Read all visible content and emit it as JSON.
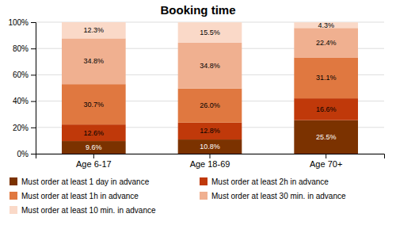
{
  "chart_data": {
    "type": "bar",
    "title": "Booking time",
    "stacked": true,
    "data_labels": true,
    "grid": true,
    "legend": "bottom",
    "categories": [
      "Age 6-17",
      "Age 18-69",
      "Age 70+"
    ],
    "series": [
      {
        "name": "Must order at least 1 day in advance",
        "color": "#7B3200",
        "values": [
          9.6,
          10.8,
          25.5
        ],
        "value_labels": [
          "9.6%",
          "10.8%",
          "25.5%"
        ]
      },
      {
        "name": "Must order at least 2h in advance",
        "color": "#C0390A",
        "values": [
          12.6,
          12.8,
          16.6
        ],
        "value_labels": [
          "12.6%",
          "12.8%",
          "16.6%"
        ]
      },
      {
        "name": "Must order at least 1h in advance",
        "color": "#E07840",
        "values": [
          30.7,
          26.0,
          31.1
        ],
        "value_labels": [
          "30.7%",
          "26.0%",
          "31.1%"
        ]
      },
      {
        "name": "Must order at least 30 min. in advance",
        "color": "#F0B090",
        "values": [
          34.8,
          34.8,
          22.4
        ],
        "value_labels": [
          "34.8%",
          "34.8%",
          "22.4%"
        ]
      },
      {
        "name": "Must order at least 10 min. in advance",
        "color": "#FAD9C8",
        "values": [
          12.3,
          15.5,
          4.3
        ],
        "value_labels": [
          "12.3%",
          "15.5%",
          "4.3%"
        ]
      }
    ],
    "ylim": [
      0,
      100
    ],
    "yticks": [
      {
        "value": 0,
        "label": "0%"
      },
      {
        "value": 20,
        "label": "20%"
      },
      {
        "value": 40,
        "label": "40%"
      },
      {
        "value": 60,
        "label": "60%"
      },
      {
        "value": 80,
        "label": "80%"
      },
      {
        "value": 100,
        "label": "100%"
      }
    ]
  }
}
